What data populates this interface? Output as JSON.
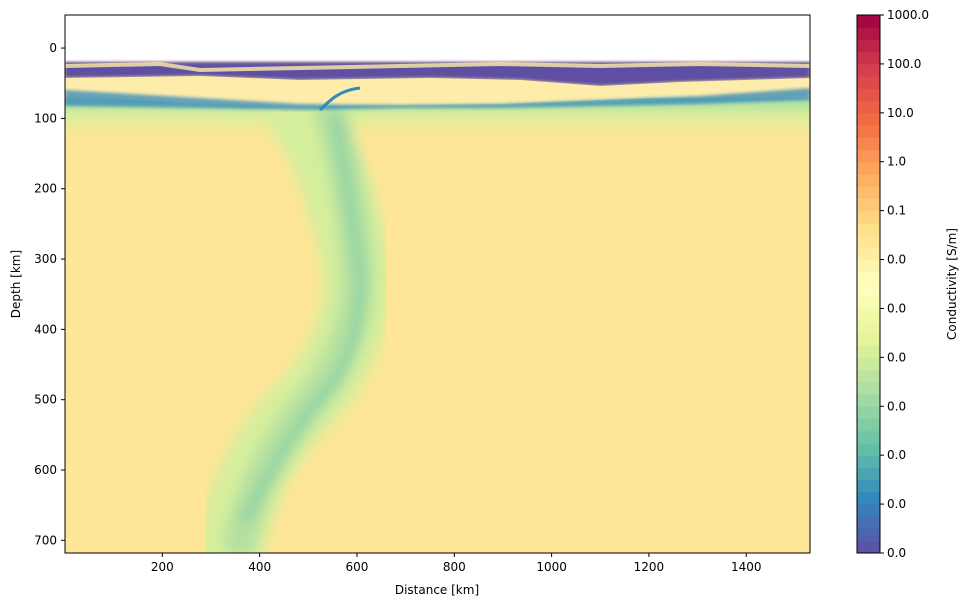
{
  "chart_data": {
    "type": "heatmap",
    "x_label": "Distance [km]",
    "y_label": "Depth [km]",
    "xlim": [
      0,
      1531
    ],
    "xticks": [
      200,
      400,
      600,
      800,
      1000,
      1200,
      1400
    ],
    "ylim": [
      718,
      -47
    ],
    "yticks": [
      0,
      100,
      200,
      300,
      400,
      500,
      600,
      700
    ],
    "colorbar": {
      "label": "Conductivity [S/m]",
      "scale": "log",
      "colormap": "Spectral_r",
      "lim": [
        1e-08,
        1000
      ],
      "ticks": [
        {
          "value": 1e-08,
          "label": "0.0"
        },
        {
          "value": 1e-07,
          "label": "0.0"
        },
        {
          "value": 1e-06,
          "label": "0.0"
        },
        {
          "value": 1e-05,
          "label": "0.0"
        },
        {
          "value": 0.0001,
          "label": "0.0"
        },
        {
          "value": 0.001,
          "label": "0.0"
        },
        {
          "value": 0.01,
          "label": "0.0"
        },
        0.1,
        {
          "value": 1,
          "label": "1.0"
        },
        {
          "value": 10,
          "label": "10.0"
        },
        {
          "value": 100,
          "label": "100.0"
        },
        {
          "value": 1000,
          "label": "1000.0"
        }
      ]
    }
  }
}
